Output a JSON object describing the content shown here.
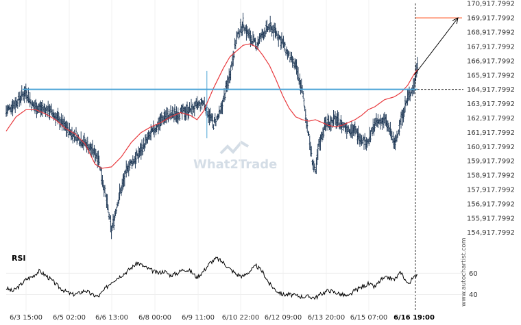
{
  "chart_data": {
    "type": "ohlc",
    "price_axis": {
      "labels": [
        "170,917.7992",
        "169,917.7992",
        "168,917.7992",
        "167,917.7992",
        "166,917.7992",
        "165,917.7992",
        "164,917.7992",
        "163,917.7992",
        "162,917.7992",
        "161,917.7992",
        "160,917.7992",
        "159,917.7992",
        "158,917.7992",
        "157,917.7992",
        "156,917.7992",
        "155,917.7992",
        "154,917.7992"
      ],
      "ylim": [
        154617.7992,
        171167.7992
      ]
    },
    "x_axis": {
      "labels": [
        "6/3 15:00",
        "6/5 02:00",
        "6/6 13:00",
        "6/8 00:00",
        "6/9 11:00",
        "6/10 22:00",
        "6/12 09:00",
        "6/13 20:00",
        "6/15 07:00",
        "6/16 19:00"
      ],
      "highlight": "6/16 19:00"
    },
    "price_anchors": [
      [
        0,
        163400
      ],
      [
        3,
        164000
      ],
      [
        6,
        164800
      ],
      [
        8,
        163800
      ],
      [
        10,
        163600
      ],
      [
        13,
        163500
      ],
      [
        16,
        162800
      ],
      [
        20,
        161800
      ],
      [
        24,
        161200
      ],
      [
        28,
        160200
      ],
      [
        31,
        156500
      ],
      [
        32,
        155000
      ],
      [
        34,
        157200
      ],
      [
        37,
        159500
      ],
      [
        40,
        160300
      ],
      [
        44,
        161800
      ],
      [
        48,
        163000
      ],
      [
        52,
        163200
      ],
      [
        56,
        163500
      ],
      [
        60,
        164000
      ],
      [
        63,
        162500
      ],
      [
        65,
        163200
      ],
      [
        68,
        166000
      ],
      [
        70,
        168500
      ],
      [
        72,
        169500
      ],
      [
        74,
        168600
      ],
      [
        76,
        168000
      ],
      [
        78,
        168800
      ],
      [
        80,
        169300
      ],
      [
        82,
        168900
      ],
      [
        84,
        168200
      ],
      [
        86,
        167200
      ],
      [
        88,
        166500
      ],
      [
        90,
        164800
      ],
      [
        91,
        163200
      ],
      [
        93,
        160000
      ],
      [
        94,
        159000
      ],
      [
        95,
        161000
      ],
      [
        97,
        162500
      ],
      [
        100,
        162800
      ],
      [
        103,
        162300
      ],
      [
        106,
        162000
      ],
      [
        108,
        161500
      ],
      [
        110,
        161200
      ],
      [
        112,
        162500
      ],
      [
        115,
        162800
      ],
      [
        117,
        161800
      ],
      [
        118,
        161000
      ],
      [
        120,
        162800
      ],
      [
        122,
        164300
      ],
      [
        124,
        165200
      ],
      [
        125,
        166800
      ]
    ],
    "ma_anchors": [
      [
        0,
        162000
      ],
      [
        3,
        163000
      ],
      [
        6,
        163500
      ],
      [
        9,
        163500
      ],
      [
        12,
        163200
      ],
      [
        15,
        162800
      ],
      [
        18,
        162200
      ],
      [
        21,
        161800
      ],
      [
        24,
        161100
      ],
      [
        27,
        159700
      ],
      [
        29,
        159400
      ],
      [
        32,
        159500
      ],
      [
        35,
        160200
      ],
      [
        38,
        161200
      ],
      [
        41,
        161900
      ],
      [
        44,
        162300
      ],
      [
        47,
        162600
      ],
      [
        50,
        163000
      ],
      [
        53,
        163300
      ],
      [
        56,
        163100
      ],
      [
        58,
        162800
      ],
      [
        60,
        163400
      ],
      [
        63,
        165000
      ],
      [
        66,
        166400
      ],
      [
        68,
        167200
      ],
      [
        70,
        167600
      ],
      [
        72,
        168000
      ],
      [
        74,
        168100
      ],
      [
        76,
        167900
      ],
      [
        78,
        167300
      ],
      [
        80,
        166600
      ],
      [
        82,
        165600
      ],
      [
        84,
        164500
      ],
      [
        86,
        163600
      ],
      [
        88,
        163000
      ],
      [
        90,
        162800
      ],
      [
        92,
        162700
      ],
      [
        94,
        162800
      ],
      [
        96,
        162600
      ],
      [
        98,
        162400
      ],
      [
        100,
        162300
      ],
      [
        102,
        162400
      ],
      [
        104,
        162600
      ],
      [
        106,
        162800
      ],
      [
        108,
        163100
      ],
      [
        110,
        163500
      ],
      [
        112,
        163700
      ],
      [
        115,
        164200
      ],
      [
        118,
        164400
      ],
      [
        120,
        164700
      ],
      [
        122,
        165200
      ],
      [
        124,
        166000
      ],
      [
        125,
        166300
      ]
    ],
    "spikes": [
      [
        61,
        166200,
        161500
      ]
    ],
    "support_line": {
      "value": 164917.7992,
      "from_index": 5
    },
    "arrow": {
      "from": [
        124,
        165917.7992
      ],
      "to_value": 169917.7992
    },
    "target_line": {
      "value": 169917.7992
    },
    "rsi": {
      "label": "RSI",
      "axis_labels": [
        "60",
        "40"
      ],
      "levels": [
        60,
        40
      ],
      "ylim": [
        30,
        75
      ],
      "anchors": [
        [
          0,
          46
        ],
        [
          2,
          43
        ],
        [
          4,
          48
        ],
        [
          6,
          54
        ],
        [
          8,
          57
        ],
        [
          10,
          62
        ],
        [
          12,
          58
        ],
        [
          14,
          53
        ],
        [
          16,
          47
        ],
        [
          18,
          43
        ],
        [
          20,
          40
        ],
        [
          22,
          41
        ],
        [
          24,
          44
        ],
        [
          26,
          40
        ],
        [
          28,
          38
        ],
        [
          30,
          45
        ],
        [
          32,
          52
        ],
        [
          34,
          56
        ],
        [
          36,
          60
        ],
        [
          38,
          65
        ],
        [
          40,
          70
        ],
        [
          42,
          66
        ],
        [
          44,
          63
        ],
        [
          46,
          60
        ],
        [
          48,
          62
        ],
        [
          50,
          58
        ],
        [
          52,
          60
        ],
        [
          54,
          64
        ],
        [
          56,
          62
        ],
        [
          58,
          56
        ],
        [
          60,
          62
        ],
        [
          62,
          70
        ],
        [
          64,
          74
        ],
        [
          66,
          70
        ],
        [
          68,
          64
        ],
        [
          70,
          59
        ],
        [
          72,
          57
        ],
        [
          74,
          62
        ],
        [
          76,
          67
        ],
        [
          78,
          61
        ],
        [
          80,
          50
        ],
        [
          82,
          44
        ],
        [
          84,
          40
        ],
        [
          86,
          40
        ],
        [
          88,
          39
        ],
        [
          90,
          38
        ],
        [
          92,
          38
        ],
        [
          94,
          37
        ],
        [
          96,
          41
        ],
        [
          98,
          44
        ],
        [
          100,
          42
        ],
        [
          102,
          40
        ],
        [
          104,
          38
        ],
        [
          106,
          44
        ],
        [
          108,
          47
        ],
        [
          110,
          50
        ],
        [
          112,
          47
        ],
        [
          114,
          54
        ],
        [
          116,
          56
        ],
        [
          118,
          54
        ],
        [
          120,
          61
        ],
        [
          122,
          50
        ],
        [
          124,
          56
        ],
        [
          125,
          60
        ]
      ]
    },
    "watermark": "What2Trade",
    "credit": "www.autochartist.com"
  }
}
